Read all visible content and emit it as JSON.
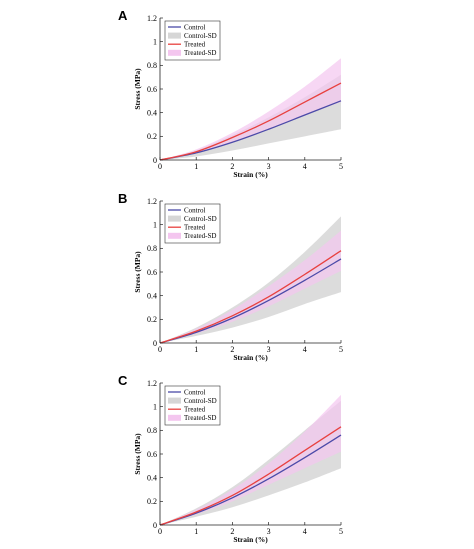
{
  "colors": {
    "control": "#4b4aa8",
    "control_sd": "#d6d6d6",
    "treated": "#e8413f",
    "treated_sd": "#f4c6ef"
  },
  "chart_data": [
    {
      "type": "line",
      "panel_label": "A",
      "xlabel": "Strain (%)",
      "ylabel": "Stress (MPa)",
      "xlim": [
        0,
        5
      ],
      "ylim": [
        0,
        1.2
      ],
      "xticks": [
        "0",
        "1",
        "2",
        "3",
        "4",
        "5"
      ],
      "yticks": [
        "0",
        "0.2",
        "0.4",
        "0.6",
        "0.8",
        "1",
        "1.2"
      ],
      "legend_position": "top-left",
      "grid": false,
      "x": [
        0,
        1,
        2,
        3,
        4,
        5
      ],
      "series": [
        {
          "name": "Control",
          "kind": "line",
          "color_key": "control",
          "values": [
            0,
            0.06,
            0.15,
            0.26,
            0.38,
            0.5
          ]
        },
        {
          "name": "Control-SD",
          "kind": "band",
          "color_key": "control_sd",
          "lower": [
            0,
            0.03,
            0.08,
            0.14,
            0.2,
            0.26
          ],
          "upper": [
            0,
            0.08,
            0.21,
            0.36,
            0.53,
            0.72
          ]
        },
        {
          "name": "Treated",
          "kind": "line",
          "color_key": "treated",
          "values": [
            0,
            0.07,
            0.19,
            0.33,
            0.49,
            0.65
          ]
        },
        {
          "name": "Treated-SD",
          "kind": "band",
          "color_key": "treated_sd",
          "lower": [
            0,
            0.06,
            0.15,
            0.26,
            0.38,
            0.49
          ],
          "upper": [
            0,
            0.09,
            0.23,
            0.41,
            0.62,
            0.86
          ]
        }
      ]
    },
    {
      "type": "line",
      "panel_label": "B",
      "xlabel": "Strain (%)",
      "ylabel": "Stress (MPa)",
      "xlim": [
        0,
        5
      ],
      "ylim": [
        0,
        1.2
      ],
      "xticks": [
        "0",
        "1",
        "2",
        "3",
        "4",
        "5"
      ],
      "yticks": [
        "0",
        "0.2",
        "0.4",
        "0.6",
        "0.8",
        "1",
        "1.2"
      ],
      "legend_position": "top-left",
      "grid": false,
      "x": [
        0,
        1,
        2,
        3,
        4,
        5
      ],
      "series": [
        {
          "name": "Control",
          "kind": "line",
          "color_key": "control",
          "values": [
            0,
            0.09,
            0.21,
            0.36,
            0.53,
            0.71
          ]
        },
        {
          "name": "Control-SD",
          "kind": "band",
          "color_key": "control_sd",
          "lower": [
            0,
            0.06,
            0.13,
            0.22,
            0.33,
            0.43
          ],
          "upper": [
            0,
            0.13,
            0.3,
            0.51,
            0.77,
            1.07
          ]
        },
        {
          "name": "Treated",
          "kind": "line",
          "color_key": "treated",
          "values": [
            0,
            0.1,
            0.23,
            0.39,
            0.58,
            0.78
          ]
        },
        {
          "name": "Treated-SD",
          "kind": "band",
          "color_key": "treated_sd",
          "lower": [
            0,
            0.08,
            0.18,
            0.31,
            0.46,
            0.61
          ],
          "upper": [
            0,
            0.12,
            0.28,
            0.48,
            0.7,
            0.95
          ]
        }
      ]
    },
    {
      "type": "line",
      "panel_label": "C",
      "xlabel": "Strain (%)",
      "ylabel": "Stress (MPa)",
      "xlim": [
        0,
        5
      ],
      "ylim": [
        0,
        1.2
      ],
      "xticks": [
        "0",
        "1",
        "2",
        "3",
        "4",
        "5"
      ],
      "yticks": [
        "0",
        "0.2",
        "0.4",
        "0.6",
        "0.8",
        "1",
        "1.2"
      ],
      "legend_position": "top-left",
      "grid": false,
      "x": [
        0,
        1,
        2,
        3,
        4,
        5
      ],
      "series": [
        {
          "name": "Control",
          "kind": "line",
          "color_key": "control",
          "values": [
            0,
            0.1,
            0.23,
            0.39,
            0.57,
            0.76
          ]
        },
        {
          "name": "Control-SD",
          "kind": "band",
          "color_key": "control_sd",
          "lower": [
            0,
            0.07,
            0.15,
            0.25,
            0.36,
            0.48
          ],
          "upper": [
            0,
            0.14,
            0.32,
            0.55,
            0.8,
            1.05
          ]
        },
        {
          "name": "Treated",
          "kind": "line",
          "color_key": "treated",
          "values": [
            0,
            0.11,
            0.25,
            0.43,
            0.63,
            0.83
          ]
        },
        {
          "name": "Treated-SD",
          "kind": "band",
          "color_key": "treated_sd",
          "lower": [
            0,
            0.09,
            0.2,
            0.34,
            0.48,
            0.62
          ],
          "upper": [
            0,
            0.13,
            0.3,
            0.52,
            0.79,
            1.1
          ]
        }
      ]
    }
  ]
}
